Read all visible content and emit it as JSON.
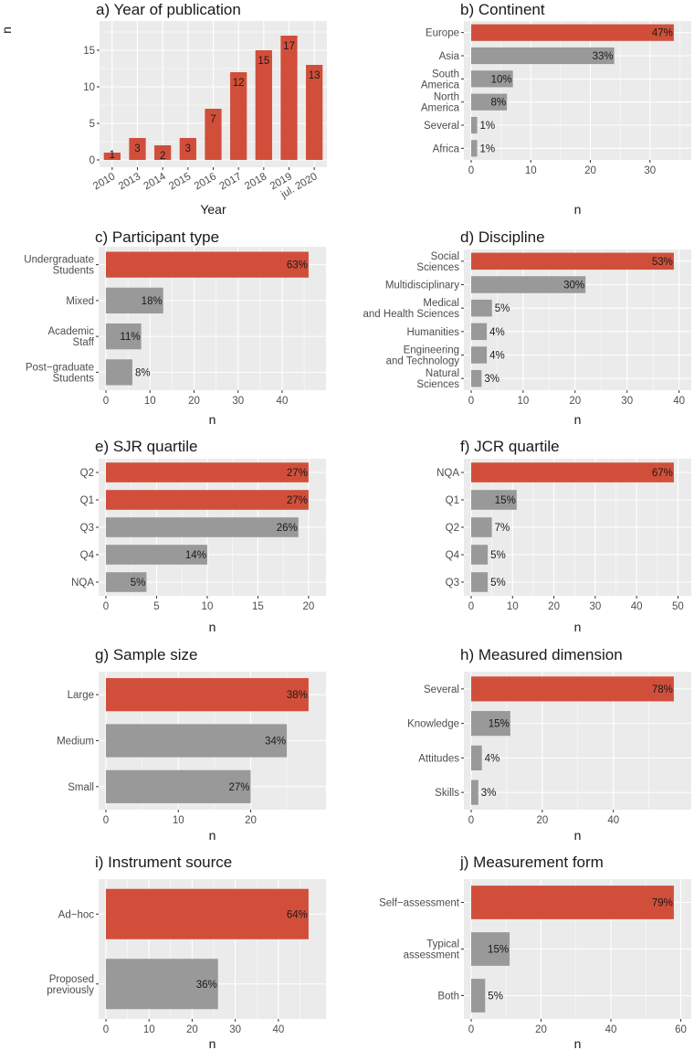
{
  "colors": {
    "highlight": "#d14f3a",
    "other": "#999999",
    "panel": "#ebebeb",
    "grid": "#ffffff"
  },
  "chart_data": [
    {
      "id": "a",
      "type": "bar",
      "orientation": "vertical",
      "title": "a) Year of publication",
      "xlabel": "Year",
      "ylabel": "n",
      "categories": [
        "2010",
        "2013",
        "2014",
        "2015",
        "2016",
        "2017",
        "2018",
        "2019",
        "jul. 2020"
      ],
      "values": [
        1,
        3,
        2,
        3,
        7,
        12,
        15,
        17,
        13
      ],
      "labels": [
        "1",
        "3",
        "2",
        "3",
        "7",
        "12",
        "15",
        "17",
        "13"
      ],
      "ticks": [
        0,
        5,
        10,
        15
      ],
      "ylim": [
        0,
        18
      ]
    },
    {
      "id": "b",
      "type": "bar",
      "orientation": "horizontal",
      "title": "b) Continent",
      "xlabel": "n",
      "categories": [
        "Europe",
        "Asia",
        "South\nAmerica",
        "North\nAmerica",
        "Several",
        "Africa"
      ],
      "values": [
        34,
        24,
        7,
        6,
        1,
        1
      ],
      "labels": [
        "47%",
        "33%",
        "10%",
        "8%",
        "1%",
        "1%"
      ],
      "ticks": [
        0,
        10,
        20,
        30
      ],
      "xlim": [
        0,
        35.7
      ]
    },
    {
      "id": "c",
      "type": "bar",
      "orientation": "horizontal",
      "title": "c) Participant type",
      "xlabel": "n",
      "categories": [
        "Undergraduate\nStudents",
        "Mixed",
        "Academic\nStaff",
        "Post−graduate\nStudents"
      ],
      "values": [
        46,
        13,
        8,
        6
      ],
      "labels": [
        "63%",
        "18%",
        "11%",
        "8%"
      ],
      "ticks": [
        0,
        10,
        20,
        30,
        40
      ],
      "xlim": [
        0,
        48.3
      ]
    },
    {
      "id": "d",
      "type": "bar",
      "orientation": "horizontal",
      "title": "d) Discipline",
      "xlabel": "n",
      "categories": [
        "Social\nSciences",
        "Multidisciplinary",
        "Medical\nand Health Sciences",
        "Humanities",
        "Engineering\nand Technology",
        "Natural\nSciences"
      ],
      "values": [
        39,
        22,
        4,
        3,
        3,
        2
      ],
      "labels": [
        "53%",
        "30%",
        "5%",
        "4%",
        "4%",
        "3%"
      ],
      "ticks": [
        0,
        10,
        20,
        30,
        40
      ],
      "xlim": [
        0,
        40.95
      ]
    },
    {
      "id": "e",
      "type": "bar",
      "orientation": "horizontal",
      "title": "e) SJR quartile",
      "xlabel": "n",
      "categories": [
        "Q2",
        "Q1",
        "Q3",
        "Q4",
        "NQA"
      ],
      "values": [
        20,
        20,
        19,
        10,
        4
      ],
      "labels": [
        "27%",
        "27%",
        "26%",
        "14%",
        "5%"
      ],
      "highlight_count": 2,
      "ticks": [
        0,
        5,
        10,
        15,
        20
      ],
      "xlim": [
        0,
        21
      ]
    },
    {
      "id": "f",
      "type": "bar",
      "orientation": "horizontal",
      "title": "f) JCR quartile",
      "xlabel": "n",
      "categories": [
        "NQA",
        "Q1",
        "Q2",
        "Q4",
        "Q3"
      ],
      "values": [
        49,
        11,
        5,
        4,
        4
      ],
      "labels": [
        "67%",
        "15%",
        "7%",
        "5%",
        "5%"
      ],
      "ticks": [
        0,
        10,
        20,
        30,
        40,
        50
      ],
      "xlim": [
        0,
        51.45
      ]
    },
    {
      "id": "g",
      "type": "bar",
      "orientation": "horizontal",
      "title": "g) Sample size",
      "xlabel": "n",
      "categories": [
        "Large",
        "Medium",
        "Small"
      ],
      "values": [
        28,
        25,
        20
      ],
      "labels": [
        "38%",
        "34%",
        "27%"
      ],
      "ticks": [
        0,
        10,
        20
      ],
      "xlim": [
        0,
        29.4
      ]
    },
    {
      "id": "h",
      "type": "bar",
      "orientation": "horizontal",
      "title": "h) Measured dimension",
      "xlabel": "n",
      "categories": [
        "Several",
        "Knowledge",
        "Attitudes",
        "Skills"
      ],
      "values": [
        57,
        11,
        3,
        2
      ],
      "labels": [
        "78%",
        "15%",
        "4%",
        "3%"
      ],
      "ticks": [
        0,
        20,
        40
      ],
      "xlim": [
        0,
        59.85
      ]
    },
    {
      "id": "i",
      "type": "bar",
      "orientation": "horizontal",
      "title": "i) Instrument source",
      "xlabel": "n",
      "categories": [
        "Ad−hoc",
        "Proposed\npreviously"
      ],
      "values": [
        47,
        26
      ],
      "labels": [
        "64%",
        "36%"
      ],
      "ticks": [
        0,
        10,
        20,
        30,
        40
      ],
      "xlim": [
        0,
        49.35
      ]
    },
    {
      "id": "j",
      "type": "bar",
      "orientation": "horizontal",
      "title": "j) Measurement form",
      "xlabel": "n",
      "categories": [
        "Self−assessment",
        "Typical\nassessment",
        "Both"
      ],
      "values": [
        58,
        11,
        4
      ],
      "labels": [
        "79%",
        "15%",
        "5%"
      ],
      "ticks": [
        0,
        20,
        40,
        60
      ],
      "xlim": [
        0,
        60.9
      ]
    }
  ]
}
